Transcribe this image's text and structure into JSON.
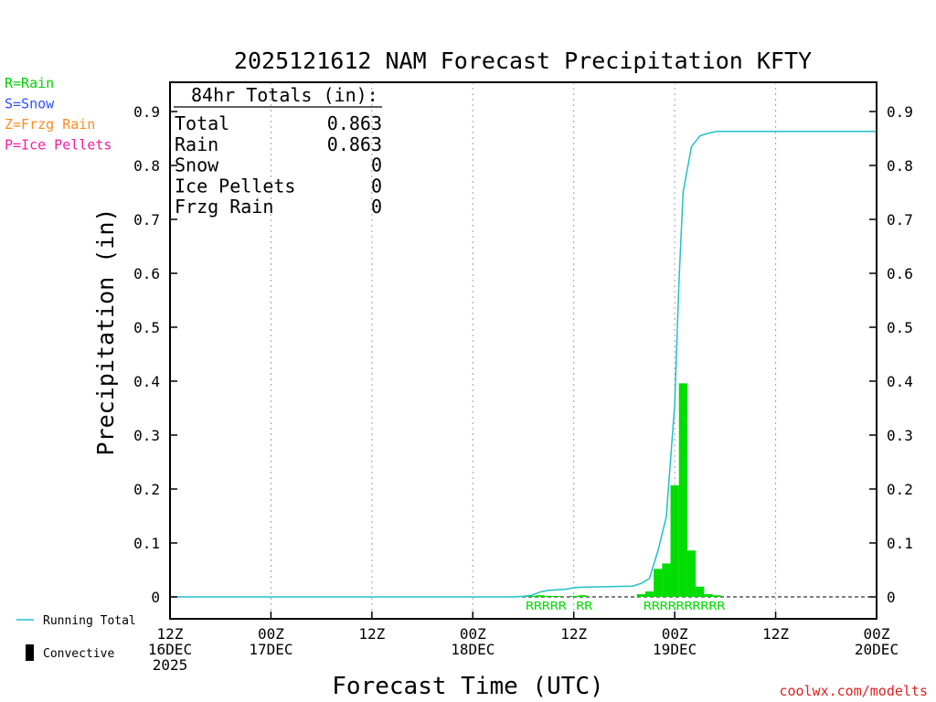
{
  "chart_data": {
    "type": "bar",
    "title": "2025121612 NAM Forecast Precipitation KFTY",
    "xlabel": "Forecast Time (UTC)",
    "ylabel": "Precipitation (in)",
    "ylim": [
      0,
      0.95
    ],
    "yticks": [
      0,
      0.1,
      0.2,
      0.3,
      0.4,
      0.5,
      0.6,
      0.7,
      0.8,
      0.9
    ],
    "ytick_labels": [
      "0",
      "0.1",
      "0.2",
      "0.3",
      "0.4",
      "0.5",
      "0.6",
      "0.7",
      "0.8",
      "0.9"
    ],
    "xlim_hours": [
      0,
      84
    ],
    "xticks": [
      {
        "hour": 0,
        "lines": [
          "12Z",
          "16DEC",
          "2025"
        ]
      },
      {
        "hour": 12,
        "lines": [
          "00Z",
          "17DEC"
        ]
      },
      {
        "hour": 24,
        "lines": [
          "12Z"
        ]
      },
      {
        "hour": 36,
        "lines": [
          "00Z",
          "18DEC"
        ]
      },
      {
        "hour": 48,
        "lines": [
          "12Z"
        ]
      },
      {
        "hour": 60,
        "lines": [
          "00Z",
          "19DEC"
        ]
      },
      {
        "hour": 72,
        "lines": [
          "12Z"
        ]
      },
      {
        "hour": 84,
        "lines": [
          "00Z",
          "20DEC"
        ]
      }
    ],
    "bar_width_hours": 1,
    "bars": [
      {
        "hour": 42,
        "value": 0.001,
        "type": "R"
      },
      {
        "hour": 43,
        "value": 0.002,
        "type": "R"
      },
      {
        "hour": 44,
        "value": 0.003,
        "type": "R"
      },
      {
        "hour": 45,
        "value": 0.002,
        "type": "R"
      },
      {
        "hour": 46,
        "value": 0.001,
        "type": "R"
      },
      {
        "hour": 48,
        "value": 0.001,
        "type": "R"
      },
      {
        "hour": 49,
        "value": 0.003,
        "type": "R"
      },
      {
        "hour": 56,
        "value": 0.005,
        "type": "R"
      },
      {
        "hour": 57,
        "value": 0.01,
        "type": "R"
      },
      {
        "hour": 58,
        "value": 0.052,
        "type": "R"
      },
      {
        "hour": 59,
        "value": 0.062,
        "type": "R"
      },
      {
        "hour": 60,
        "value": 0.207,
        "type": "R"
      },
      {
        "hour": 61,
        "value": 0.396,
        "type": "R"
      },
      {
        "hour": 62,
        "value": 0.086,
        "type": "R"
      },
      {
        "hour": 63,
        "value": 0.019,
        "type": "R"
      },
      {
        "hour": 64,
        "value": 0.005,
        "type": "R"
      },
      {
        "hour": 65,
        "value": 0.003,
        "type": "R"
      }
    ],
    "precip_type_label_groups": [
      {
        "start_hour": 42.5,
        "text": "RRRRR"
      },
      {
        "start_hour": 48.5,
        "text": "RR"
      },
      {
        "start_hour": 56.5,
        "text": "RRRRRRRRRR"
      }
    ],
    "running_total": {
      "hours": [
        0,
        41,
        42,
        43,
        44,
        45,
        46,
        47,
        48,
        49,
        55,
        56,
        57,
        58,
        59,
        60,
        60.5,
        61,
        62,
        63,
        64,
        65,
        66,
        84
      ],
      "values": [
        0,
        0,
        0.001,
        0.003,
        0.009,
        0.012,
        0.013,
        0.014,
        0.017,
        0.018,
        0.02,
        0.025,
        0.034,
        0.085,
        0.148,
        0.355,
        0.58,
        0.75,
        0.835,
        0.855,
        0.86,
        0.863,
        0.863,
        0.863
      ]
    },
    "totals_box": {
      "header": "84hr Totals (in):",
      "rows": [
        {
          "label": "Total",
          "value": "0.863"
        },
        {
          "label": "Rain",
          "value": "0.863"
        },
        {
          "label": "Snow",
          "value": "0"
        },
        {
          "label": "Ice Pellets",
          "value": "0"
        },
        {
          "label": "Frzg Rain",
          "value": "0"
        }
      ]
    },
    "type_legend": [
      {
        "text": "R=Rain",
        "color": "#00d000"
      },
      {
        "text": "S=Snow",
        "color": "#3050ff"
      },
      {
        "text": "Z=Frzg Rain",
        "color": "#ff8c20"
      },
      {
        "text": "P=Ice Pellets",
        "color": "#ff1aa0"
      }
    ],
    "series_legend": [
      {
        "text": "Running Total",
        "kind": "line",
        "color": "#20c0c8"
      },
      {
        "text": "Convective",
        "kind": "bar",
        "color": "#000000"
      }
    ],
    "credit": "coolwx.com/modelts",
    "colors": {
      "rain_bar": "#00dd00",
      "running_total": "#20c0c8",
      "axis": "#000000",
      "grid": "#a0a0a0",
      "credit": "#e02020"
    }
  }
}
